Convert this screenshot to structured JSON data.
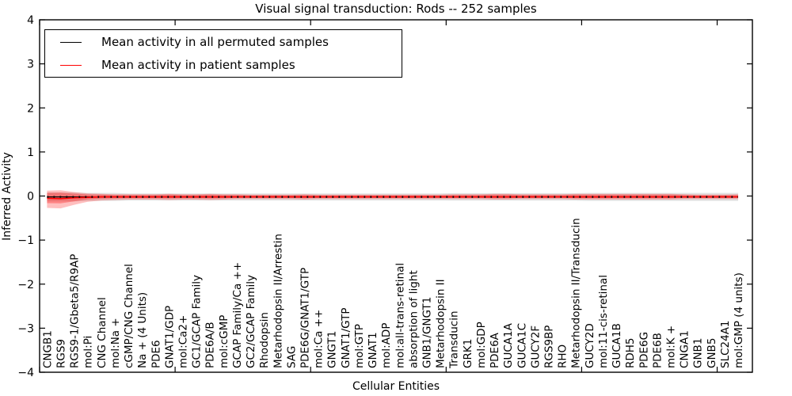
{
  "chart": {
    "title": "Visual signal transduction: Rods -- 252 samples",
    "xlabel": "Cellular Entities",
    "ylabel": "Inferred Activity"
  },
  "legend": {
    "items": [
      {
        "label": "Mean activity in all permuted samples",
        "color": "#000000"
      },
      {
        "label": "Mean activity in patient samples",
        "color": "#ff0000"
      }
    ]
  },
  "chart_data": {
    "type": "line",
    "title": "Visual signal transduction: Rods -- 252 samples",
    "xlabel": "Cellular Entities",
    "ylabel": "Inferred Activity",
    "ylim": [
      -4,
      4
    ],
    "yticks": [
      -4,
      -3,
      -2,
      -1,
      0,
      1,
      2,
      3,
      4
    ],
    "xlim": [
      0,
      52.6
    ],
    "x_offset": 0.55,
    "xticks": [
      0,
      10,
      20,
      30,
      40,
      50
    ],
    "grid": false,
    "legend_position": "upper left",
    "frame_color": "#000000",
    "categories": [
      "CNGB1",
      "RGS9",
      "RGS9-1/Gbeta5/R9AP",
      "mol:Pi",
      "CNG Channel",
      "mol:Na +",
      "cGMP/CNG Channel",
      "Na + (4 Units)",
      "PDE6",
      "GNAT1/GDP",
      "mol:Ca2+",
      "GC1/GCAP Family",
      "PDE6A/B",
      "mol:cGMP",
      "GCAP Family/Ca ++",
      "GC2/GCAP Family",
      "Rhodopsin",
      "Metarhodopsin II/Arrestin",
      "SAG",
      "PDE6G/GNAT1/GTP",
      "mol:Ca ++",
      "GNGT1",
      "GNAT1/GTP",
      "mol:GTP",
      "GNAT1",
      "mol:ADP",
      "mol:all-trans-retinal",
      "absorption of light",
      "GNB1/GNGT1",
      "Metarhodopsin II",
      "Transducin",
      "GRK1",
      "mol:GDP",
      "PDE6A",
      "GUCA1A",
      "GUCA1C",
      "GUCY2F",
      "RGS9BP",
      "RHO",
      "Metarhodopsin II/Transducin",
      "GUCY2D",
      "mol:11-cis-retinal",
      "GUCA1B",
      "RDH5",
      "PDE6G",
      "PDE6B",
      "mol:K +",
      "CNGA1",
      "GNB1",
      "GNB5",
      "SLC24A1",
      "mol:GMP (4 units)"
    ],
    "series": [
      {
        "name": "Mean activity in all permuted samples",
        "color": "#000000",
        "linestyle": "solid-with-dotted-overlay",
        "values": [
          -0.02,
          -0.02,
          -0.02,
          -0.02,
          -0.02,
          -0.02,
          -0.02,
          -0.02,
          -0.02,
          -0.02,
          -0.02,
          -0.02,
          -0.02,
          -0.02,
          -0.02,
          -0.02,
          -0.02,
          -0.02,
          -0.02,
          -0.02,
          -0.02,
          -0.02,
          -0.02,
          -0.02,
          -0.02,
          -0.02,
          -0.02,
          -0.02,
          -0.02,
          -0.02,
          -0.02,
          -0.02,
          -0.02,
          -0.02,
          -0.02,
          -0.02,
          -0.02,
          -0.02,
          -0.02,
          -0.02,
          -0.02,
          -0.02,
          -0.02,
          -0.02,
          -0.02,
          -0.02,
          -0.02,
          -0.02,
          -0.02,
          -0.02,
          -0.02,
          -0.02
        ],
        "band": {
          "color": "#999999",
          "alpha": 0.3,
          "upper": [
            0.08,
            0.08,
            0.08,
            0.07,
            0.07,
            0.07,
            0.06,
            0.06,
            0.06,
            0.06,
            0.06,
            0.06,
            0.06,
            0.06,
            0.06,
            0.06,
            0.06,
            0.06,
            0.06,
            0.06,
            0.06,
            0.06,
            0.06,
            0.06,
            0.06,
            0.06,
            0.06,
            0.06,
            0.06,
            0.06,
            0.065,
            0.065,
            0.065,
            0.065,
            0.065,
            0.065,
            0.065,
            0.065,
            0.065,
            0.065,
            0.07,
            0.07,
            0.07,
            0.07,
            0.07,
            0.07,
            0.07,
            0.07,
            0.07,
            0.07,
            0.07,
            0.07
          ],
          "lower": [
            -0.12,
            -0.12,
            -0.12,
            -0.11,
            -0.11,
            -0.11,
            -0.1,
            -0.1,
            -0.1,
            -0.1,
            -0.1,
            -0.1,
            -0.1,
            -0.1,
            -0.1,
            -0.1,
            -0.1,
            -0.1,
            -0.1,
            -0.1,
            -0.1,
            -0.1,
            -0.1,
            -0.1,
            -0.1,
            -0.1,
            -0.1,
            -0.1,
            -0.1,
            -0.1,
            -0.105,
            -0.105,
            -0.105,
            -0.105,
            -0.105,
            -0.105,
            -0.105,
            -0.105,
            -0.105,
            -0.105,
            -0.11,
            -0.11,
            -0.11,
            -0.11,
            -0.11,
            -0.11,
            -0.11,
            -0.11,
            -0.11,
            -0.11,
            -0.11,
            -0.11
          ]
        }
      },
      {
        "name": "Mean activity in patient samples",
        "color": "#ff0000",
        "linestyle": "solid",
        "values": [
          -0.05,
          -0.06,
          -0.04,
          -0.03,
          -0.02,
          -0.02,
          -0.02,
          -0.02,
          -0.02,
          -0.02,
          -0.02,
          -0.02,
          -0.02,
          -0.02,
          -0.02,
          -0.02,
          -0.02,
          -0.02,
          -0.02,
          -0.02,
          -0.02,
          -0.02,
          -0.02,
          -0.02,
          -0.02,
          -0.02,
          -0.02,
          -0.02,
          -0.02,
          -0.02,
          -0.02,
          -0.02,
          -0.02,
          -0.02,
          -0.02,
          -0.02,
          -0.02,
          -0.02,
          -0.02,
          -0.02,
          -0.02,
          -0.02,
          -0.02,
          -0.02,
          -0.02,
          -0.02,
          -0.02,
          -0.02,
          -0.02,
          -0.02,
          -0.02,
          -0.02
        ],
        "band": {
          "color": "#ff0000",
          "alpha": 0.25,
          "inner_band_scale": 0.6,
          "inner_band_alpha": 0.3,
          "upper": [
            0.12,
            0.13,
            0.09,
            0.06,
            0.05,
            0.04,
            0.04,
            0.04,
            0.04,
            0.05,
            0.04,
            0.04,
            0.05,
            0.04,
            0.04,
            0.03,
            0.03,
            0.03,
            0.03,
            0.04,
            0.03,
            0.03,
            0.03,
            0.03,
            0.03,
            0.03,
            0.03,
            0.03,
            0.03,
            0.03,
            0.04,
            0.04,
            0.04,
            0.05,
            0.05,
            0.04,
            0.04,
            0.04,
            0.04,
            0.05,
            0.05,
            0.05,
            0.05,
            0.05,
            0.05,
            0.05,
            0.05,
            0.04,
            0.03,
            0.03,
            0.03,
            0.04
          ],
          "lower": [
            -0.27,
            -0.28,
            -0.2,
            -0.13,
            -0.1,
            -0.09,
            -0.08,
            -0.08,
            -0.08,
            -0.09,
            -0.08,
            -0.08,
            -0.09,
            -0.08,
            -0.07,
            -0.07,
            -0.07,
            -0.07,
            -0.07,
            -0.08,
            -0.07,
            -0.07,
            -0.07,
            -0.07,
            -0.07,
            -0.07,
            -0.07,
            -0.07,
            -0.07,
            -0.07,
            -0.07,
            -0.07,
            -0.07,
            -0.08,
            -0.08,
            -0.07,
            -0.07,
            -0.07,
            -0.07,
            -0.08,
            -0.08,
            -0.08,
            -0.08,
            -0.08,
            -0.08,
            -0.08,
            -0.08,
            -0.07,
            -0.07,
            -0.07,
            -0.07,
            -0.07
          ]
        }
      }
    ]
  }
}
